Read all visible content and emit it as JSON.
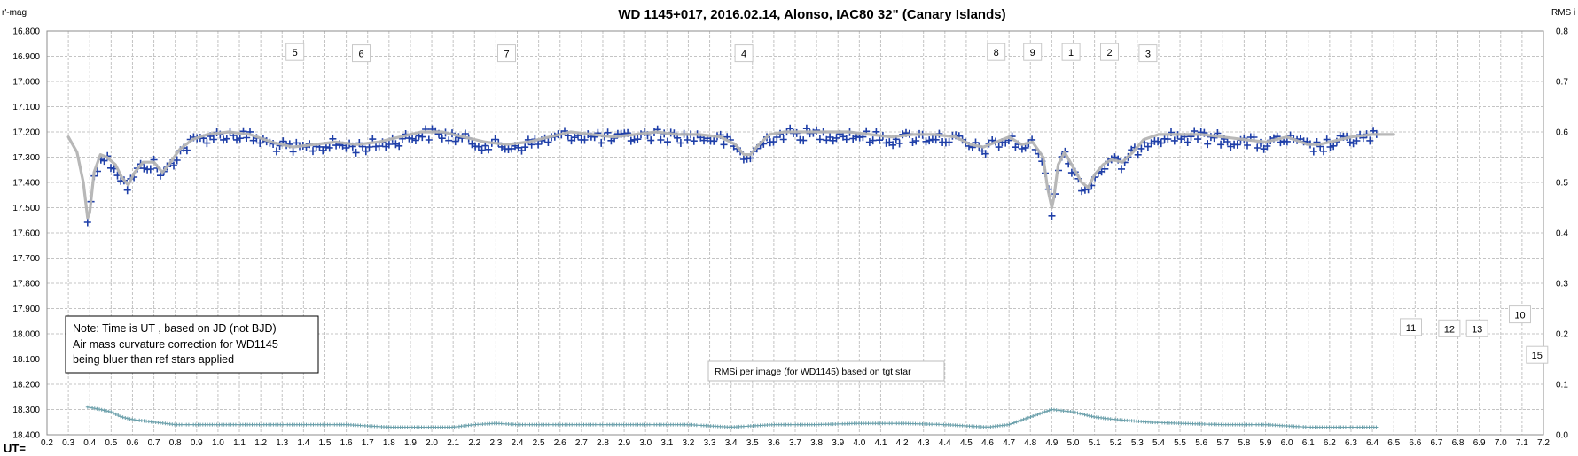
{
  "chart_data": {
    "type": "scatter",
    "title": "WD 1145+017,  2016.02.14,  Alonso,  IAC80  32\" (Canary Islands)",
    "ylabel": "r'-mag",
    "y2label": "RMS i",
    "xlabel": "UT=",
    "xlim": [
      0.2,
      7.2
    ],
    "ylim": [
      16.8,
      18.4
    ],
    "y_inverted": true,
    "y2lim": [
      0.0,
      0.8
    ],
    "grid": true,
    "x_ticks": [
      "0.2",
      "0.3",
      "0.4",
      "0.5",
      "0.6",
      "0.7",
      "0.8",
      "0.9",
      "1.0",
      "1.1",
      "1.2",
      "1.3",
      "1.4",
      "1.5",
      "1.6",
      "1.7",
      "1.8",
      "1.9",
      "2.0",
      "2.1",
      "2.2",
      "2.3",
      "2.4",
      "2.5",
      "2.6",
      "2.7",
      "2.8",
      "2.9",
      "3.0",
      "3.1",
      "3.2",
      "3.3",
      "3.4",
      "3.5",
      "3.6",
      "3.7",
      "3.8",
      "3.9",
      "4.0",
      "4.1",
      "4.2",
      "4.3",
      "4.4",
      "4.5",
      "4.6",
      "4.7",
      "4.8",
      "4.9",
      "5.0",
      "5.1",
      "5.2",
      "5.3",
      "5.4",
      "5.5",
      "5.6",
      "5.7",
      "5.8",
      "5.9",
      "6.0",
      "6.1",
      "6.2",
      "6.3",
      "6.4",
      "6.5",
      "6.6",
      "6.7",
      "6.8",
      "6.9",
      "7.0",
      "7.1",
      "7.2"
    ],
    "y_ticks": [
      "16.800",
      "16.900",
      "17.000",
      "17.100",
      "17.200",
      "17.300",
      "17.400",
      "17.500",
      "17.600",
      "17.700",
      "17.800",
      "17.900",
      "18.000",
      "18.100",
      "18.200",
      "18.300",
      "18.400"
    ],
    "y2_ticks": [
      "0.8",
      "0.7",
      "0.6",
      "0.5",
      "0.4",
      "0.3",
      "0.2",
      "0.1",
      "0.0"
    ],
    "colors": {
      "points": "#1f3fa8",
      "model": "#b4b4b4",
      "rms": "#6a9faa",
      "grid": "#c4c4c4"
    },
    "model_curve": [
      [
        0.3,
        17.22
      ],
      [
        0.34,
        17.28
      ],
      [
        0.37,
        17.4
      ],
      [
        0.39,
        17.54
      ],
      [
        0.4,
        17.52
      ],
      [
        0.42,
        17.36
      ],
      [
        0.45,
        17.29
      ],
      [
        0.48,
        17.3
      ],
      [
        0.52,
        17.33
      ],
      [
        0.55,
        17.38
      ],
      [
        0.58,
        17.41
      ],
      [
        0.61,
        17.36
      ],
      [
        0.65,
        17.32
      ],
      [
        0.7,
        17.32
      ],
      [
        0.74,
        17.36
      ],
      [
        0.77,
        17.33
      ],
      [
        0.82,
        17.27
      ],
      [
        0.88,
        17.23
      ],
      [
        0.95,
        17.21
      ],
      [
        1.05,
        17.2
      ],
      [
        1.15,
        17.21
      ],
      [
        1.25,
        17.24
      ],
      [
        1.35,
        17.26
      ],
      [
        1.45,
        17.25
      ],
      [
        1.55,
        17.24
      ],
      [
        1.65,
        17.25
      ],
      [
        1.75,
        17.24
      ],
      [
        1.85,
        17.22
      ],
      [
        1.95,
        17.2
      ],
      [
        2.05,
        17.2
      ],
      [
        2.15,
        17.22
      ],
      [
        2.25,
        17.24
      ],
      [
        2.35,
        17.25
      ],
      [
        2.45,
        17.24
      ],
      [
        2.55,
        17.22
      ],
      [
        2.65,
        17.2
      ],
      [
        2.75,
        17.21
      ],
      [
        2.85,
        17.22
      ],
      [
        2.95,
        17.21
      ],
      [
        3.05,
        17.2
      ],
      [
        3.15,
        17.21
      ],
      [
        3.25,
        17.21
      ],
      [
        3.35,
        17.22
      ],
      [
        3.42,
        17.25
      ],
      [
        3.46,
        17.29
      ],
      [
        3.49,
        17.29
      ],
      [
        3.53,
        17.25
      ],
      [
        3.58,
        17.21
      ],
      [
        3.65,
        17.2
      ],
      [
        3.75,
        17.2
      ],
      [
        3.85,
        17.2
      ],
      [
        3.95,
        17.2
      ],
      [
        4.05,
        17.21
      ],
      [
        4.15,
        17.22
      ],
      [
        4.25,
        17.21
      ],
      [
        4.35,
        17.21
      ],
      [
        4.45,
        17.22
      ],
      [
        4.52,
        17.25
      ],
      [
        4.58,
        17.26
      ],
      [
        4.64,
        17.24
      ],
      [
        4.7,
        17.22
      ],
      [
        4.76,
        17.25
      ],
      [
        4.81,
        17.24
      ],
      [
        4.86,
        17.3
      ],
      [
        4.88,
        17.42
      ],
      [
        4.9,
        17.5
      ],
      [
        4.91,
        17.46
      ],
      [
        4.93,
        17.33
      ],
      [
        4.96,
        17.28
      ],
      [
        5.0,
        17.34
      ],
      [
        5.04,
        17.4
      ],
      [
        5.07,
        17.42
      ],
      [
        5.1,
        17.37
      ],
      [
        5.14,
        17.33
      ],
      [
        5.18,
        17.31
      ],
      [
        5.23,
        17.32
      ],
      [
        5.28,
        17.28
      ],
      [
        5.33,
        17.23
      ],
      [
        5.4,
        17.21
      ],
      [
        5.5,
        17.21
      ],
      [
        5.6,
        17.21
      ],
      [
        5.7,
        17.22
      ],
      [
        5.8,
        17.23
      ],
      [
        5.9,
        17.24
      ],
      [
        6.0,
        17.22
      ],
      [
        6.1,
        17.25
      ],
      [
        6.15,
        17.25
      ],
      [
        6.2,
        17.24
      ],
      [
        6.3,
        17.22
      ],
      [
        6.4,
        17.21
      ],
      [
        6.5,
        17.21
      ]
    ],
    "points_note": "blue + markers scattered about the model curve from UT 0.39 to 6.42",
    "rms_series": [
      [
        0.39,
        18.29
      ],
      [
        0.45,
        18.3
      ],
      [
        0.5,
        18.31
      ],
      [
        0.55,
        18.33
      ],
      [
        0.6,
        18.34
      ],
      [
        0.7,
        18.35
      ],
      [
        0.8,
        18.36
      ],
      [
        1.0,
        18.36
      ],
      [
        1.2,
        18.36
      ],
      [
        1.4,
        18.36
      ],
      [
        1.6,
        18.36
      ],
      [
        1.8,
        18.37
      ],
      [
        2.0,
        18.37
      ],
      [
        2.1,
        18.37
      ],
      [
        2.2,
        18.36
      ],
      [
        2.3,
        18.355
      ],
      [
        2.4,
        18.36
      ],
      [
        2.6,
        18.36
      ],
      [
        2.8,
        18.36
      ],
      [
        3.0,
        18.36
      ],
      [
        3.2,
        18.36
      ],
      [
        3.4,
        18.37
      ],
      [
        3.6,
        18.36
      ],
      [
        3.8,
        18.36
      ],
      [
        4.0,
        18.355
      ],
      [
        4.2,
        18.355
      ],
      [
        4.4,
        18.36
      ],
      [
        4.6,
        18.37
      ],
      [
        4.7,
        18.36
      ],
      [
        4.8,
        18.33
      ],
      [
        4.9,
        18.3
      ],
      [
        5.0,
        18.31
      ],
      [
        5.1,
        18.33
      ],
      [
        5.2,
        18.34
      ],
      [
        5.35,
        18.35
      ],
      [
        5.5,
        18.355
      ],
      [
        5.7,
        18.36
      ],
      [
        5.9,
        18.36
      ],
      [
        6.1,
        18.37
      ],
      [
        6.3,
        18.37
      ],
      [
        6.42,
        18.37
      ]
    ],
    "markers": [
      {
        "label": "5",
        "x": 1.36,
        "y": 16.885
      },
      {
        "label": "6",
        "x": 1.67,
        "y": 16.89
      },
      {
        "label": "7",
        "x": 2.35,
        "y": 16.89
      },
      {
        "label": "4",
        "x": 3.46,
        "y": 16.89
      },
      {
        "label": "8",
        "x": 4.64,
        "y": 16.885
      },
      {
        "label": "9",
        "x": 4.81,
        "y": 16.885
      },
      {
        "label": "1",
        "x": 4.99,
        "y": 16.885
      },
      {
        "label": "2",
        "x": 5.17,
        "y": 16.885
      },
      {
        "label": "3",
        "x": 5.35,
        "y": 16.89
      },
      {
        "label": "10",
        "x": 7.09,
        "y": 17.925
      },
      {
        "label": "11",
        "x": 6.58,
        "y": 17.975
      },
      {
        "label": "12",
        "x": 6.76,
        "y": 17.98
      },
      {
        "label": "13",
        "x": 6.89,
        "y": 17.98
      },
      {
        "label": "15",
        "x": 7.17,
        "y": 18.085
      }
    ],
    "note_lines": [
      "Note: Time is UT , based on JD (not BJD)",
      "Air mass  curvature correction for WD1145",
      "being bluer than ref stars applied"
    ],
    "rms_label": "RMSi per image (for WD1145) based on tgt star"
  }
}
